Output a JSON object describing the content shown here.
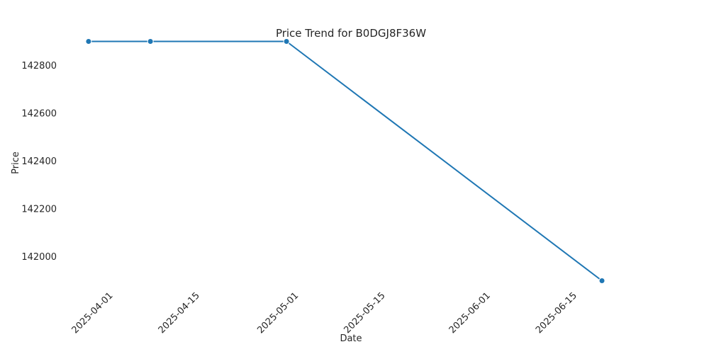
{
  "chart_data": {
    "type": "line",
    "title": "Price Trend for B0DGJ8F36W",
    "xlabel": "Date",
    "ylabel": "Price",
    "x_axis_type": "date",
    "xlim": [
      "2025-03-24",
      "2025-06-30"
    ],
    "ylim": [
      141860,
      142940
    ],
    "x_ticks": [
      "2025-04-01",
      "2025-04-15",
      "2025-05-01",
      "2025-05-15",
      "2025-06-01",
      "2025-06-15"
    ],
    "y_ticks": [
      142000,
      142200,
      142400,
      142600,
      142800
    ],
    "grid": false,
    "legend": "none",
    "markers": true,
    "series": [
      {
        "color": "#1f77b4",
        "points": [
          {
            "x": "2025-03-28",
            "y": 142900
          },
          {
            "x": "2025-04-07",
            "y": 142900
          },
          {
            "x": "2025-04-29",
            "y": 142900
          },
          {
            "x": "2025-06-19",
            "y": 141900
          }
        ]
      }
    ]
  }
}
